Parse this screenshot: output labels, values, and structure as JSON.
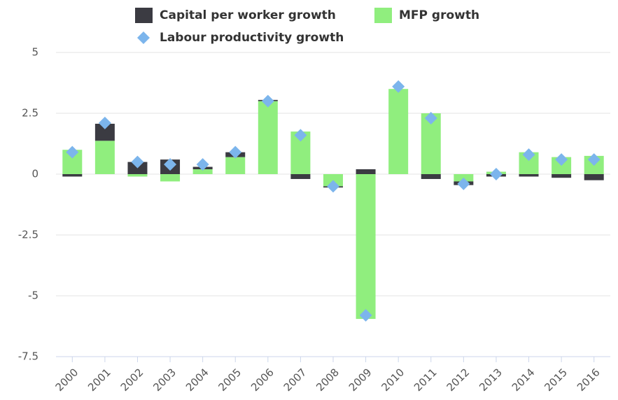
{
  "chart_data": {
    "type": "bar",
    "categories": [
      "2000",
      "2001",
      "2002",
      "2003",
      "2004",
      "2005",
      "2006",
      "2007",
      "2008",
      "2009",
      "2010",
      "2011",
      "2012",
      "2013",
      "2014",
      "2015",
      "2016"
    ],
    "series": [
      {
        "name": "Capital per worker growth",
        "color": "#3b3b42",
        "stacked": true,
        "values": [
          -0.1,
          0.7,
          0.5,
          0.6,
          0.1,
          0.2,
          0.05,
          -0.2,
          -0.05,
          0.2,
          0,
          -0.2,
          -0.15,
          -0.1,
          -0.1,
          -0.15,
          -0.25
        ]
      },
      {
        "name": "MFP growth",
        "color": "#90ee7e",
        "stacked": true,
        "values": [
          1.0,
          1.37,
          -0.1,
          -0.3,
          0.2,
          0.7,
          3.0,
          1.75,
          -0.5,
          -5.95,
          3.5,
          2.5,
          -0.3,
          0.1,
          0.9,
          0.7,
          0.75
        ]
      },
      {
        "name": "Labour productivity growth",
        "color": "#7cb5ec",
        "marker": "diamond",
        "values": [
          0.9,
          2.1,
          0.5,
          0.4,
          0.4,
          0.9,
          3.0,
          1.6,
          -0.5,
          -5.8,
          3.6,
          2.3,
          -0.4,
          0.0,
          0.8,
          0.6,
          0.6
        ]
      }
    ],
    "ylim": [
      -7.5,
      5
    ],
    "yticks": [
      -7.5,
      -5,
      -2.5,
      0,
      2.5,
      5
    ],
    "grid": true
  }
}
